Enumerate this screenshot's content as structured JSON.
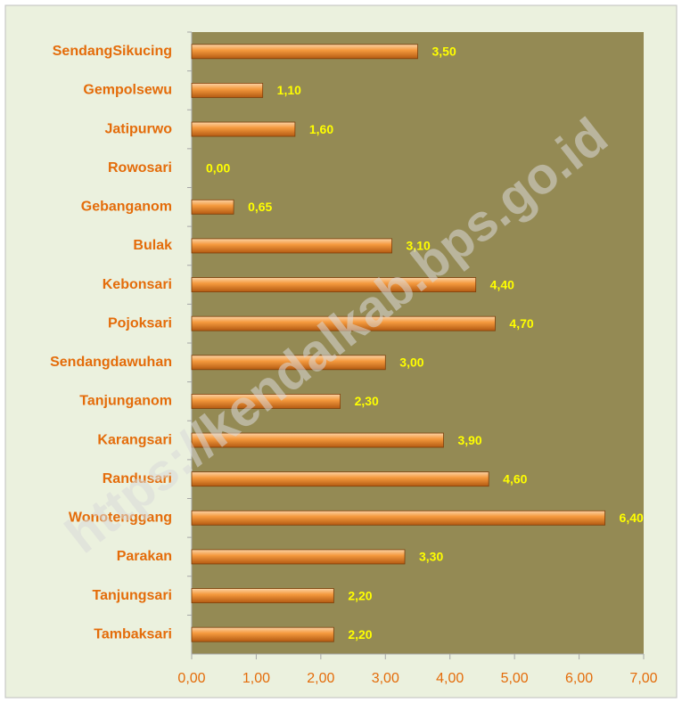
{
  "chart_data": {
    "type": "bar",
    "orientation": "horizontal",
    "categories": [
      "SendangSikucing",
      "Gempolsewu",
      "Jatipurwo",
      "Rowosari",
      "Gebanganom",
      "Bulak",
      "Kebonsari",
      "Pojoksari",
      "Sendangdawuhan",
      "Tanjunganom",
      "Karangsari",
      "Randusari",
      "Wonotenggang",
      "Parakan",
      "Tanjungsari",
      "Tambaksari"
    ],
    "values": [
      3.5,
      1.1,
      1.6,
      0,
      0.65,
      3.1,
      4.4,
      4.7,
      3.0,
      2.3,
      3.9,
      4.6,
      6.4,
      3.3,
      2.2,
      2.2
    ],
    "value_labels": [
      "3,50",
      "1,10",
      "1,60",
      "0,00",
      "0,65",
      "3,10",
      "4,40",
      "4,70",
      "3,00",
      "2,30",
      "3,90",
      "4,60",
      "6,40",
      "3,30",
      "2,20",
      "2,20"
    ],
    "color": "#e8872c",
    "xlim": [
      0,
      7
    ],
    "xticks": [
      {
        "value": 0,
        "label": "0,00"
      },
      {
        "value": 1,
        "label": "1,00"
      },
      {
        "value": 2,
        "label": "2,00"
      },
      {
        "value": 3,
        "label": "3,00"
      },
      {
        "value": 4,
        "label": "4,00"
      },
      {
        "value": 5,
        "label": "5,00"
      },
      {
        "value": 6,
        "label": "6,00"
      },
      {
        "value": 7,
        "label": "7,00"
      }
    ],
    "watermark": "https://kendalkab.bps.go.id"
  }
}
